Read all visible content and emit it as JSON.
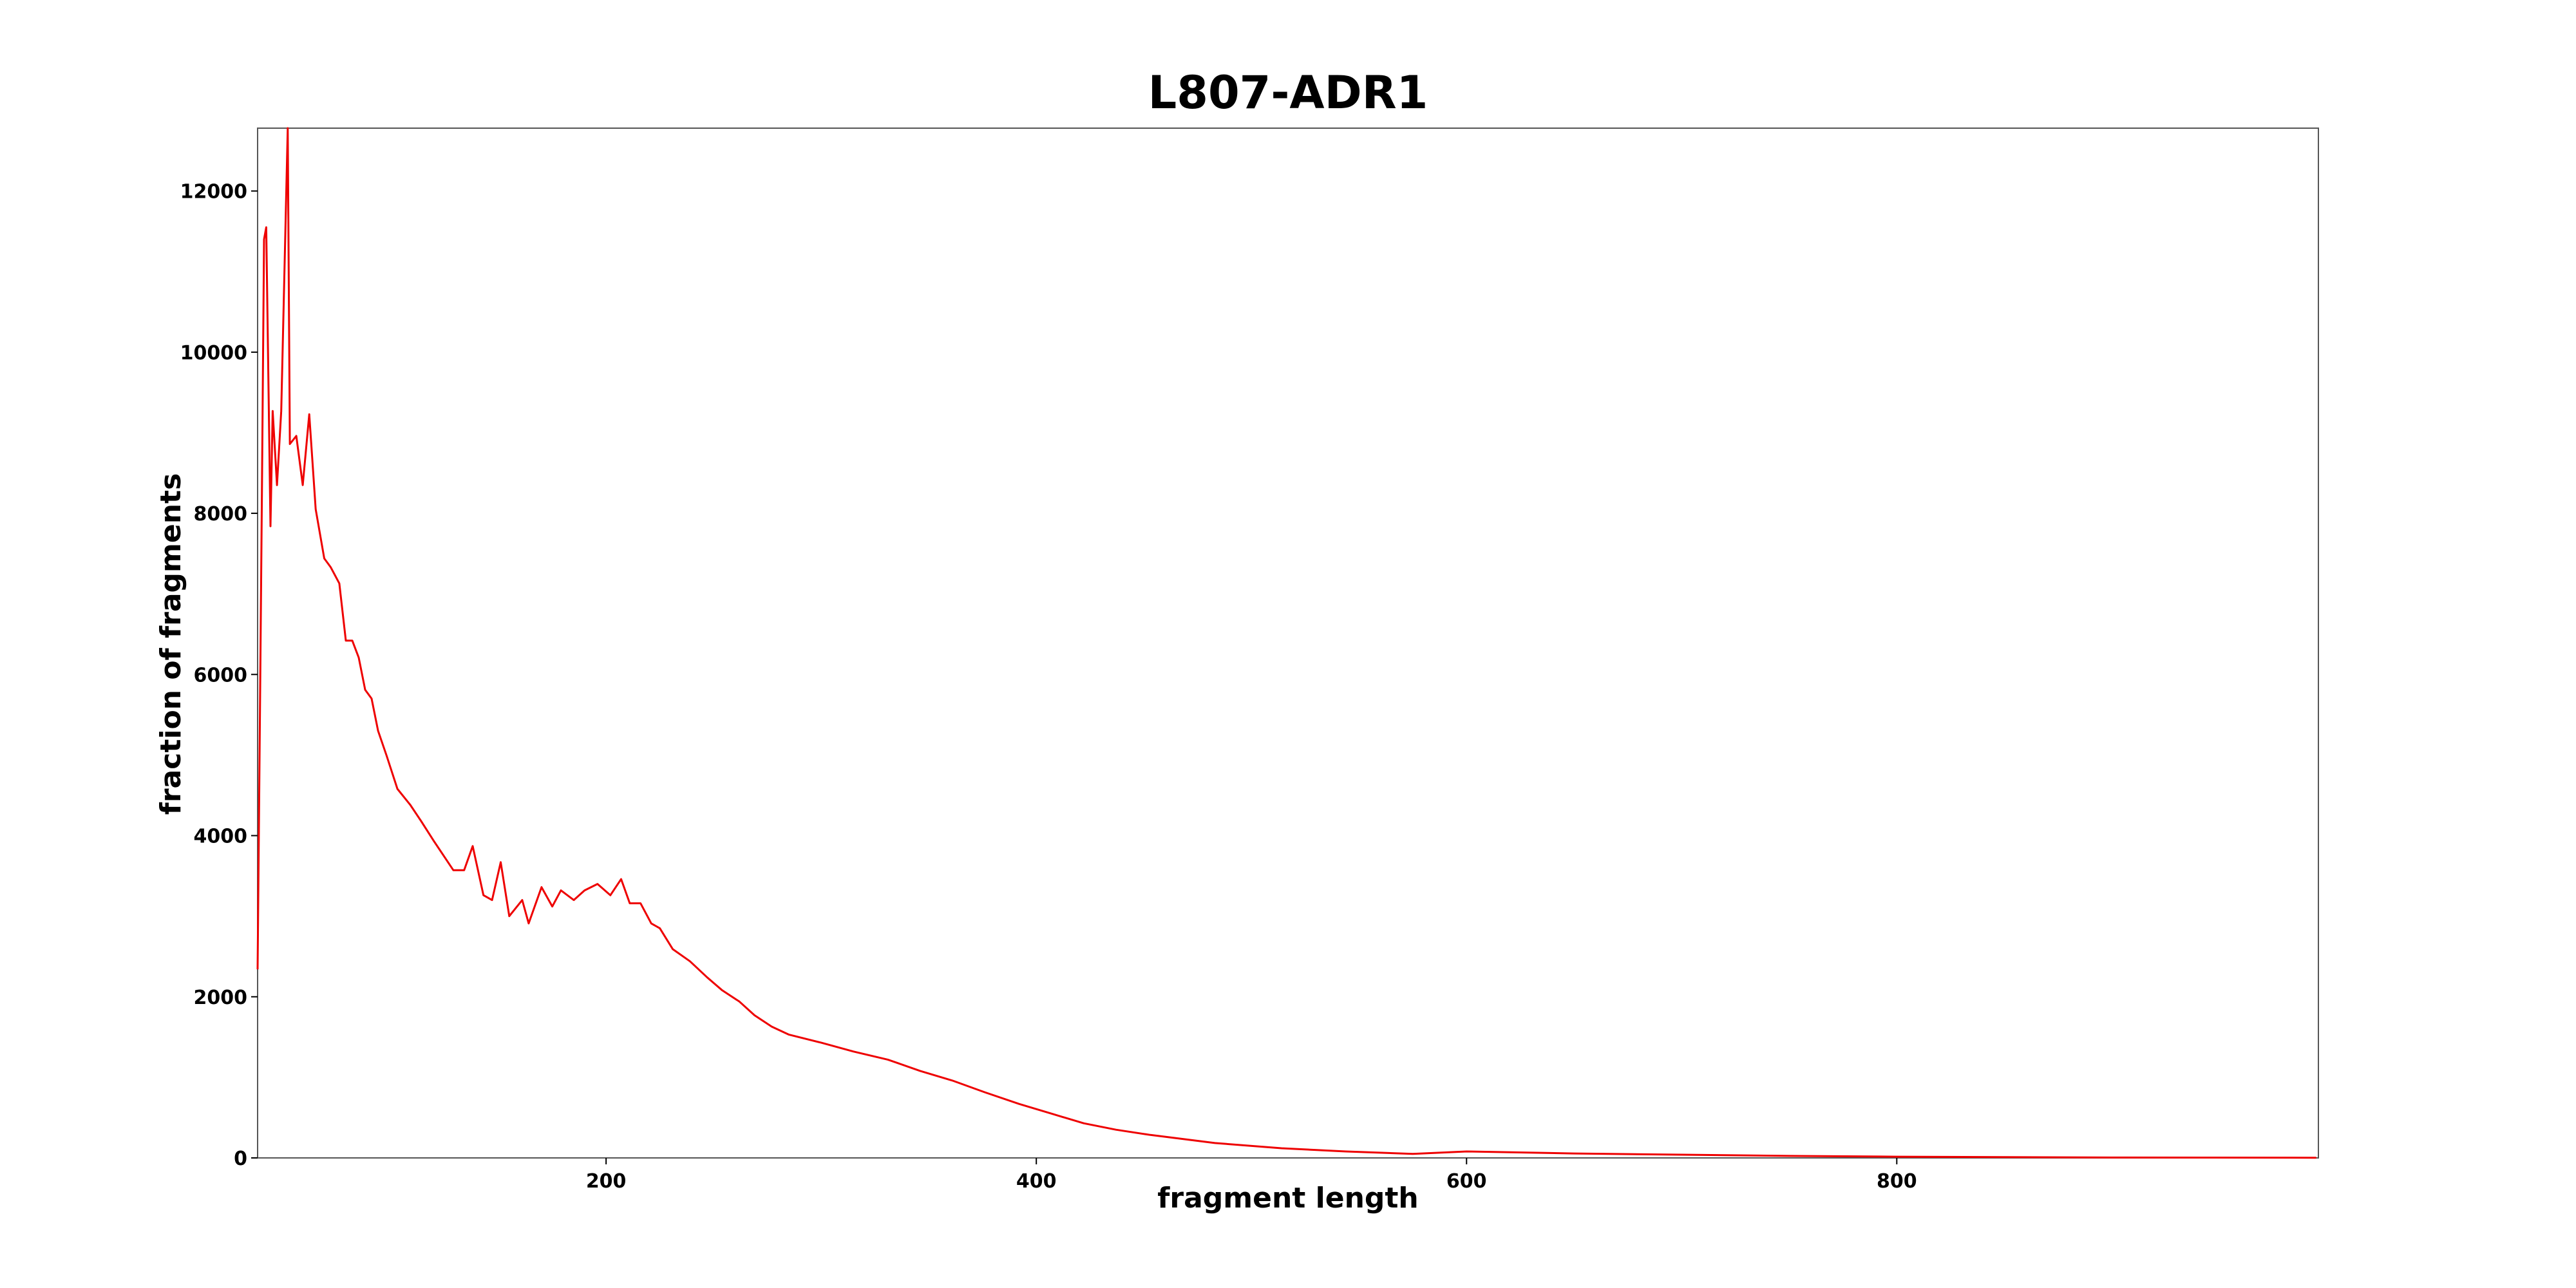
{
  "chart_data": {
    "type": "line",
    "title": "L807-ADR1",
    "x_label": "fragment length",
    "y_label": "fraction of fragments",
    "xlim": [
      38,
      996
    ],
    "ylim": [
      0,
      12780
    ],
    "xticks": [
      200,
      400,
      600,
      800
    ],
    "yticks": [
      0,
      2000,
      4000,
      6000,
      8000,
      10000,
      12000
    ],
    "grid": false,
    "x": [
      38,
      39,
      40,
      41,
      42,
      44,
      45,
      47,
      49,
      52,
      53,
      56,
      59,
      62,
      65,
      69,
      72,
      76,
      79,
      82,
      85,
      88,
      91,
      94,
      98,
      103,
      109,
      114,
      120,
      124,
      129,
      134,
      138,
      143,
      147,
      151,
      155,
      161,
      164,
      170,
      175,
      179,
      185,
      190,
      196,
      202,
      207,
      211,
      216,
      221,
      225,
      231,
      239,
      247,
      254,
      262,
      269,
      277,
      285,
      300,
      315,
      331,
      346,
      361,
      376,
      392,
      407,
      422,
      437,
      453,
      483,
      514,
      544,
      575,
      600,
      650,
      700,
      750,
      800,
      900,
      995
    ],
    "series": [
      {
        "name": "L807-ADR1",
        "color": "#ee0000",
        "values": [
          2340,
          5200,
          8250,
          11400,
          11550,
          7840,
          9270,
          8350,
          9270,
          12780,
          8860,
          8960,
          8350,
          9230,
          8050,
          7440,
          7330,
          7130,
          6420,
          6420,
          6210,
          5810,
          5700,
          5300,
          4990,
          4580,
          4380,
          4180,
          3930,
          3770,
          3570,
          3570,
          3870,
          3260,
          3200,
          3670,
          3000,
          3200,
          2910,
          3360,
          3120,
          3320,
          3200,
          3320,
          3400,
          3260,
          3460,
          3160,
          3160,
          2910,
          2850,
          2590,
          2440,
          2240,
          2080,
          1940,
          1770,
          1630,
          1530,
          1430,
          1320,
          1220,
          1080,
          960,
          815,
          670,
          550,
          430,
          350,
          285,
          185,
          120,
          80,
          50,
          80,
          55,
          40,
          25,
          15,
          5,
          2
        ]
      }
    ]
  }
}
